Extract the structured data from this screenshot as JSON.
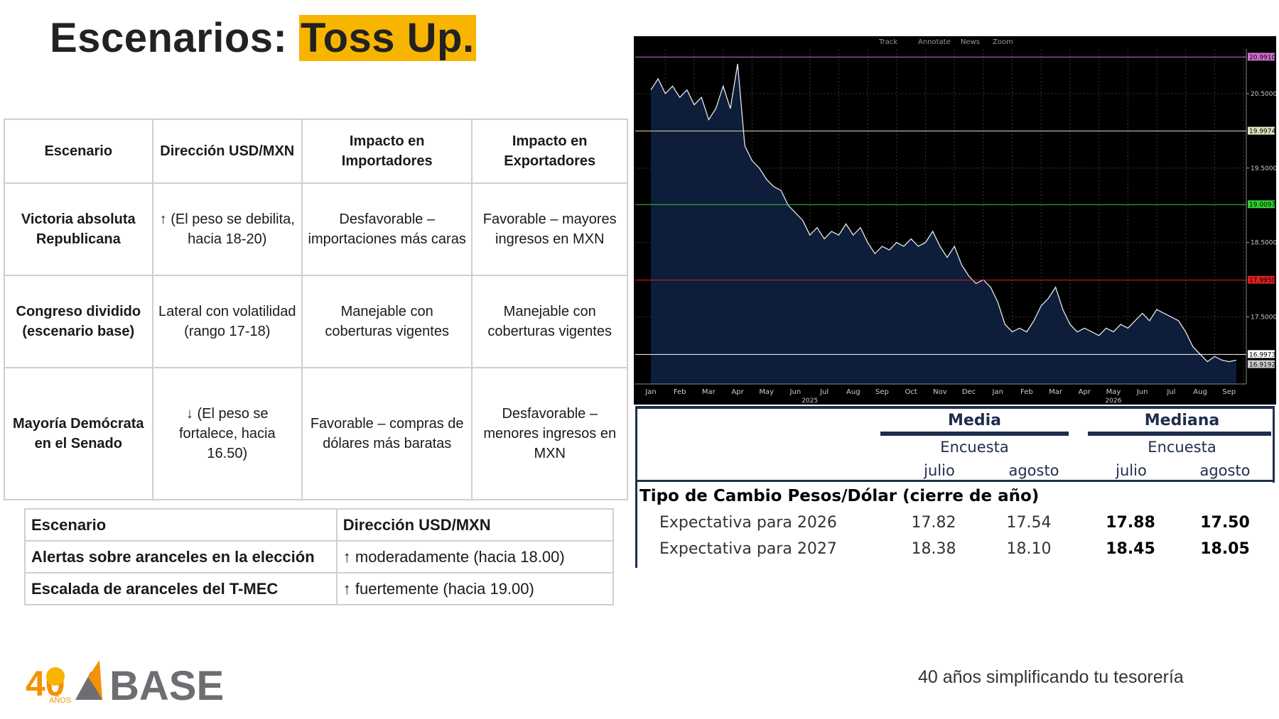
{
  "title": {
    "prefix": "Escenarios:",
    "highlight": "Toss Up."
  },
  "scenario_table": {
    "headers": [
      "Escenario",
      "Dirección USD/MXN",
      "Impacto en Importadores",
      "Impacto en Exportadores"
    ],
    "rows": [
      [
        "Victoria absoluta Republicana",
        "↑ (El peso se debilita, hacia 18-20)",
        "Desfavorable – importaciones más caras",
        "Favorable – mayores ingresos en MXN"
      ],
      [
        "Congreso dividido (escenario base)",
        "Lateral con volatilidad (rango 17-18)",
        "Manejable con coberturas vigentes",
        "Manejable con coberturas vigentes"
      ],
      [
        "Mayoría Demócrata en el Senado",
        "↓ (El peso se fortalece, hacia 16.50)",
        "Favorable – compras de dólares más baratas",
        "Desfavorable – menores ingresos en MXN"
      ]
    ]
  },
  "alerts_table": {
    "headers": [
      "Escenario",
      "Dirección USD/MXN"
    ],
    "rows": [
      [
        "Alertas sobre aranceles en la elección",
        "↑ moderadamente (hacia 18.00)"
      ],
      [
        "Escalada de aranceles del T-MEC",
        "↑ fuertemente (hacia 19.00)"
      ]
    ]
  },
  "chart_toolbar": [
    "Track",
    "Annotate",
    "News",
    "Zoom"
  ],
  "chart_data": {
    "type": "area",
    "ylim": [
      16.6,
      21.1
    ],
    "y_ticks": [
      "20.5000",
      "19.5000",
      "18.5000",
      "17.5000"
    ],
    "reference_lines": [
      {
        "value": 20.991,
        "label": "20.9910",
        "color": "#d070d0"
      },
      {
        "value": 19.9974,
        "label": "19.9974",
        "color": "#e0e0c0"
      },
      {
        "value": 19.0097,
        "label": "19.0097",
        "color": "#30d030"
      },
      {
        "value": 17.995,
        "label": "17.9950",
        "color": "#e02020"
      },
      {
        "value": 16.9973,
        "label": "16.9973",
        "color": "#ffffff"
      },
      {
        "value": 16.9192,
        "label": "16.9192",
        "color": "#cccccc"
      }
    ],
    "x_labels": [
      "Jan",
      "Feb",
      "Mar",
      "Apr",
      "May",
      "Jun",
      "Jul",
      "Aug",
      "Sep",
      "Oct",
      "Nov",
      "Dec",
      "Jan",
      "Feb",
      "Mar",
      "Apr",
      "May",
      "Jun",
      "Jul",
      "Aug",
      "Sep"
    ],
    "year_labels": [
      {
        "label": "2025",
        "at_month": 5.5
      },
      {
        "label": "2026",
        "at_month": 16.0
      }
    ],
    "x_months": [
      0,
      0.25,
      0.5,
      0.75,
      1,
      1.25,
      1.5,
      1.75,
      2,
      2.25,
      2.5,
      2.75,
      3,
      3.25,
      3.5,
      3.75,
      4,
      4.25,
      4.5,
      4.75,
      5,
      5.25,
      5.5,
      5.75,
      6,
      6.25,
      6.5,
      6.75,
      7,
      7.25,
      7.5,
      7.75,
      8,
      8.25,
      8.5,
      8.75,
      9,
      9.25,
      9.5,
      9.75,
      10,
      10.25,
      10.5,
      10.75,
      11,
      11.25,
      11.5,
      11.75,
      12,
      12.25,
      12.5,
      12.75,
      13,
      13.25,
      13.5,
      13.75,
      14,
      14.25,
      14.5,
      14.75,
      15,
      15.25,
      15.5,
      15.75,
      16,
      16.25,
      16.5,
      16.75,
      17,
      17.25,
      17.5,
      17.75,
      18,
      18.25,
      18.5,
      18.75,
      19,
      19.25,
      19.5,
      19.75,
      20,
      20.25
    ],
    "values": [
      20.55,
      20.7,
      20.5,
      20.6,
      20.45,
      20.55,
      20.35,
      20.45,
      20.15,
      20.3,
      20.6,
      20.3,
      20.9,
      19.8,
      19.6,
      19.5,
      19.35,
      19.25,
      19.2,
      19.0,
      18.9,
      18.8,
      18.6,
      18.7,
      18.55,
      18.65,
      18.6,
      18.75,
      18.6,
      18.7,
      18.5,
      18.35,
      18.45,
      18.4,
      18.5,
      18.45,
      18.55,
      18.45,
      18.5,
      18.65,
      18.45,
      18.3,
      18.45,
      18.2,
      18.05,
      17.95,
      18.0,
      17.9,
      17.7,
      17.4,
      17.3,
      17.35,
      17.3,
      17.45,
      17.65,
      17.75,
      17.9,
      17.6,
      17.4,
      17.3,
      17.35,
      17.3,
      17.25,
      17.35,
      17.3,
      17.4,
      17.35,
      17.45,
      17.55,
      17.45,
      17.6,
      17.55,
      17.5,
      17.45,
      17.3,
      17.1,
      17.0,
      16.9,
      16.97,
      16.92,
      16.9,
      16.92
    ]
  },
  "survey": {
    "groups": [
      "Media",
      "Mediana"
    ],
    "sub": [
      "Encuesta",
      "Encuesta"
    ],
    "months": [
      "julio",
      "agosto",
      "julio",
      "agosto"
    ],
    "section": "Tipo de Cambio Pesos/Dólar (cierre de año)",
    "rows": [
      {
        "label": "Expectativa para 2026",
        "values": [
          "17.82",
          "17.54",
          "17.88",
          "17.50"
        ]
      },
      {
        "label": "Expectativa para 2027",
        "values": [
          "18.38",
          "18.10",
          "18.45",
          "18.05"
        ]
      }
    ]
  },
  "logo": {
    "number": "40",
    "sub": "AÑOS",
    "name": "BASE"
  },
  "footer": {
    "tagline": "40 años simplificando tu tesorería"
  },
  "colors": {
    "highlight": "#f7b500",
    "navy": "#1f2d4d",
    "chart_fill": "#0d1d3a",
    "logo_orange": "#f39200",
    "logo_gray": "#6d6e71"
  }
}
